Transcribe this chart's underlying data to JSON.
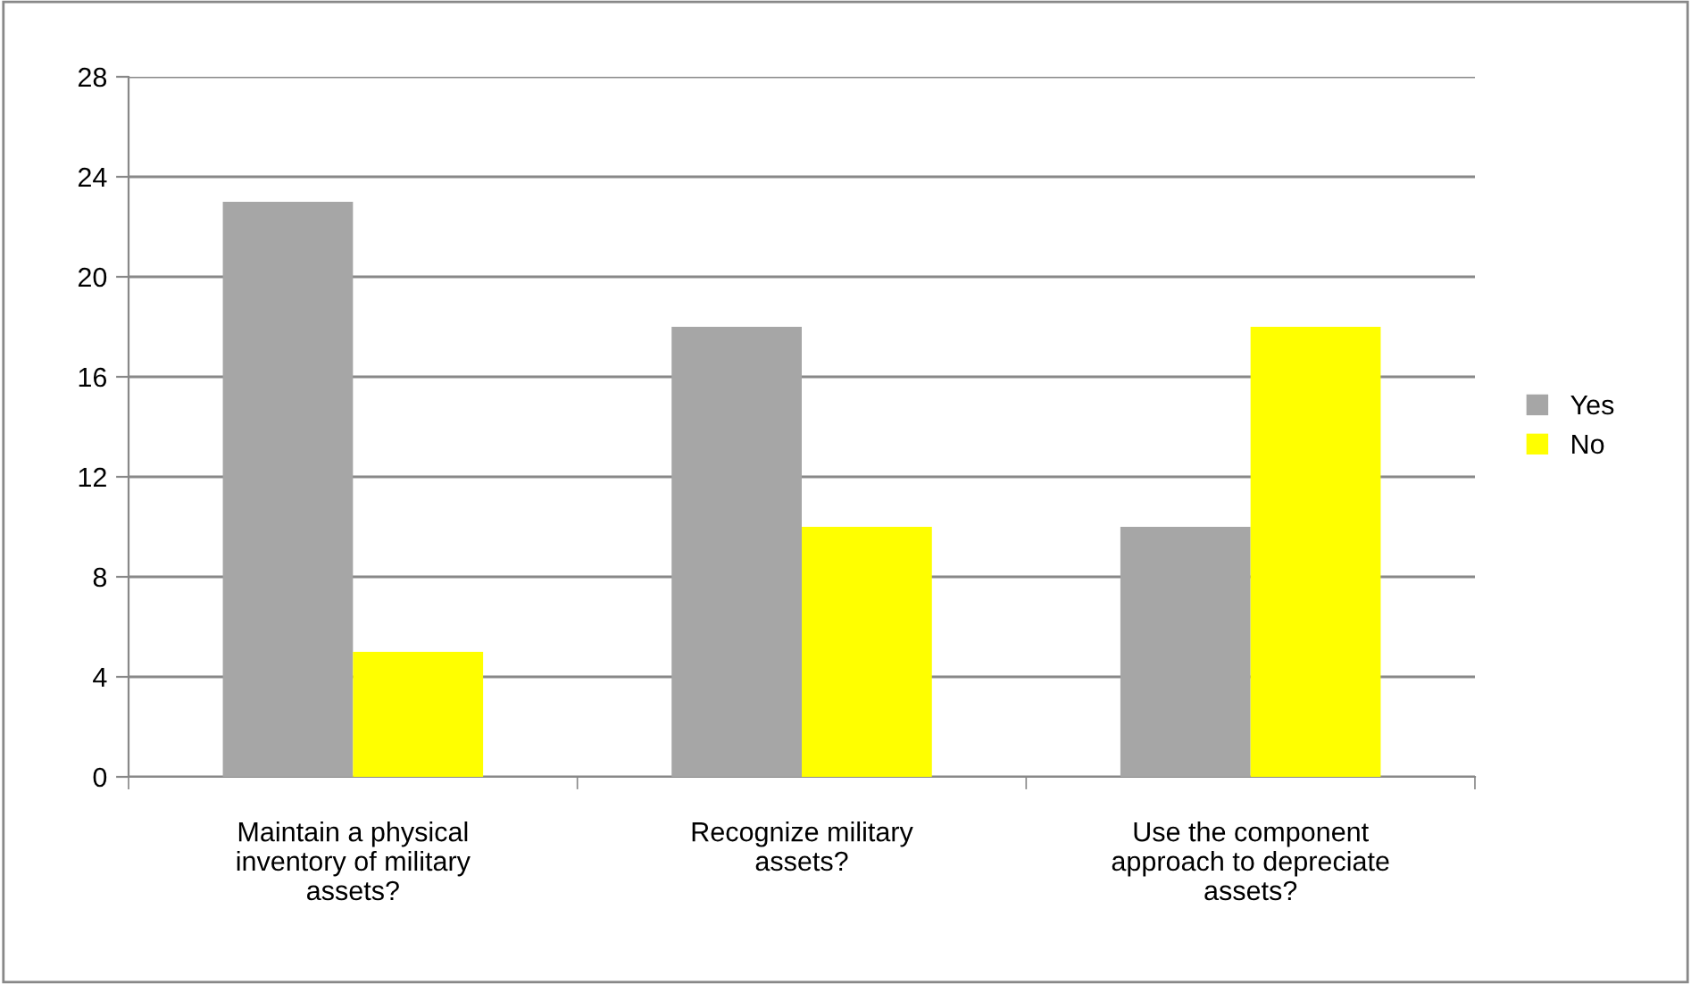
{
  "chart_data": {
    "type": "bar",
    "categories": [
      "Maintain a physical\ninventory of military\nassets?",
      "Recognize military\nassets?",
      "Use the component\napproach to depreciate\nassets?"
    ],
    "series": [
      {
        "name": "Yes",
        "color": "#a6a6a6",
        "values": [
          23,
          18,
          10
        ]
      },
      {
        "name": "No",
        "color": "#ffff00",
        "values": [
          5,
          10,
          18
        ]
      }
    ],
    "ylim": [
      0,
      28
    ],
    "yticks": [
      0,
      4,
      8,
      12,
      16,
      20,
      24,
      28
    ],
    "grid": "y",
    "legend": "right"
  }
}
